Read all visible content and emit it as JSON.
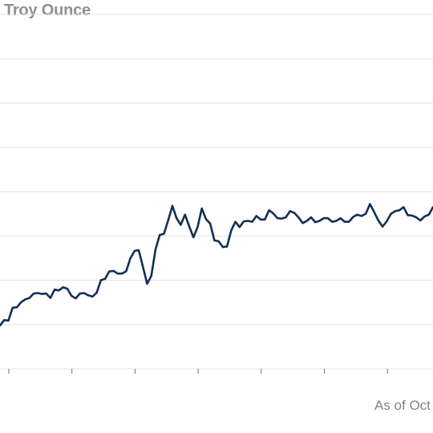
{
  "chart_data": {
    "type": "line",
    "title": "r Troy Ounce",
    "note": "As of Oct",
    "ylim": [
      0,
      8
    ],
    "grid": true,
    "legend": "none",
    "x_tick_count": 7,
    "colors": {
      "line": "#132f55",
      "grid": "#e1e3e5",
      "axis": "#6e7478"
    },
    "values": [
      0.98,
      1.1,
      1.09,
      1.38,
      1.39,
      1.5,
      1.57,
      1.6,
      1.7,
      1.71,
      1.69,
      1.7,
      1.6,
      1.79,
      1.77,
      1.84,
      1.81,
      1.65,
      1.59,
      1.7,
      1.71,
      1.66,
      1.63,
      1.72,
      2.0,
      2.03,
      2.2,
      2.21,
      2.15,
      2.15,
      2.2,
      2.49,
      2.66,
      2.68,
      2.3,
      1.92,
      2.1,
      2.7,
      3.02,
      3.05,
      3.35,
      3.68,
      3.4,
      3.25,
      3.48,
      3.22,
      2.97,
      3.2,
      3.62,
      3.38,
      3.28,
      2.9,
      2.88,
      2.75,
      2.76,
      3.12,
      3.32,
      3.2,
      3.33,
      3.34,
      3.32,
      3.45,
      3.37,
      3.37,
      3.58,
      3.51,
      3.4,
      3.39,
      3.42,
      3.56,
      3.52,
      3.42,
      3.29,
      3.34,
      3.42,
      3.31,
      3.34,
      3.4,
      3.4,
      3.32,
      3.34,
      3.4,
      3.32,
      3.32,
      3.43,
      3.48,
      3.45,
      3.5,
      3.72,
      3.54,
      3.35,
      3.21,
      3.33,
      3.5,
      3.56,
      3.58,
      3.65,
      3.47,
      3.46,
      3.42,
      3.35,
      3.44,
      3.48,
      3.65
    ]
  }
}
